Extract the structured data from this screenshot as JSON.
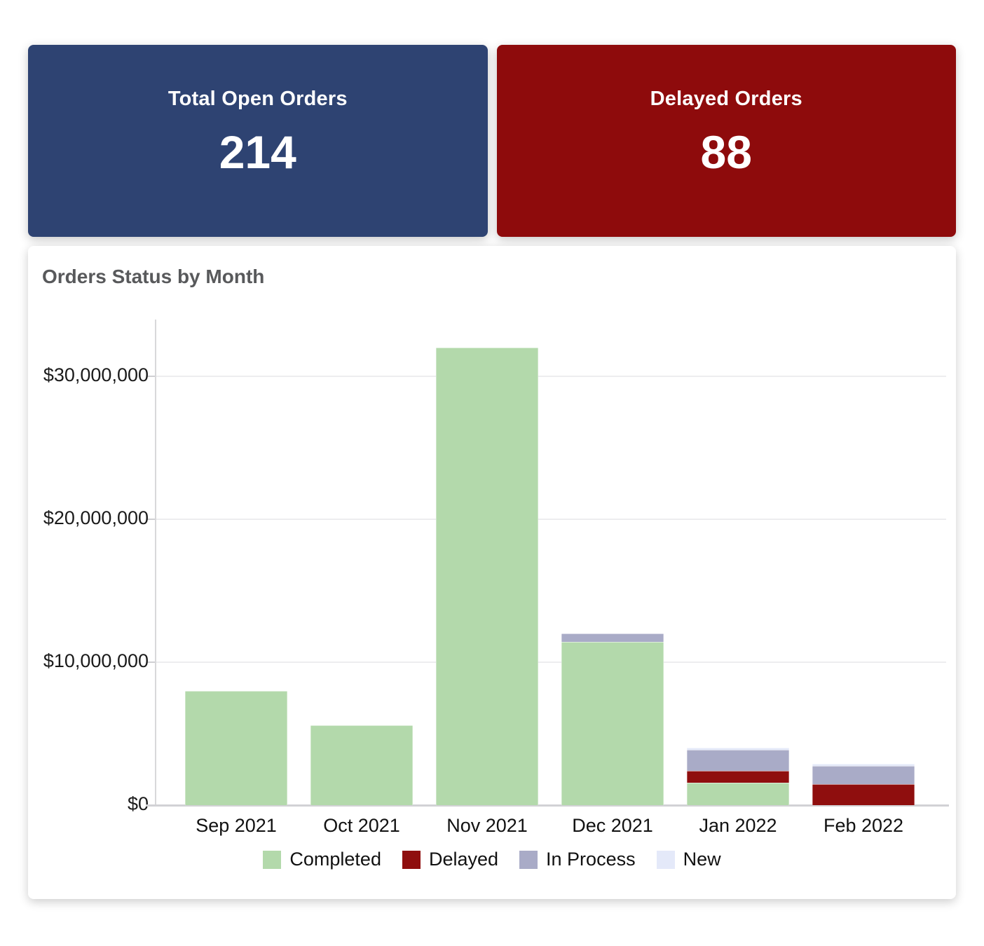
{
  "kpi_cards": [
    {
      "label": "Total Open Orders",
      "value": "214",
      "bg": "#2e4372"
    },
    {
      "label": "Delayed Orders",
      "value": "88",
      "bg": "#8e0b0c"
    }
  ],
  "chart_data": {
    "type": "bar",
    "stacked": true,
    "title": "Orders Status by Month",
    "categories": [
      "Sep 2021",
      "Oct 2021",
      "Nov 2021",
      "Dec 2021",
      "Jan 2022",
      "Feb 2022"
    ],
    "series": [
      {
        "name": "Completed",
        "color": "#b3d9ab",
        "values": [
          8000000,
          5600000,
          32000000,
          11400000,
          1550000,
          0
        ]
      },
      {
        "name": "Delayed",
        "color": "#8f0e0e",
        "values": [
          0,
          0,
          0,
          0,
          850000,
          1450000
        ]
      },
      {
        "name": "In Process",
        "color": "#a9abc7",
        "values": [
          0,
          0,
          0,
          600000,
          1450000,
          1300000
        ]
      },
      {
        "name": "New",
        "color": "#e4e9f9",
        "values": [
          0,
          0,
          0,
          0,
          150000,
          150000
        ]
      }
    ],
    "y_ticks": [
      {
        "value": 0,
        "label": "$0"
      },
      {
        "value": 10000000,
        "label": "$10,000,000"
      },
      {
        "value": 20000000,
        "label": "$20,000,000"
      },
      {
        "value": 30000000,
        "label": "$30,000,000"
      }
    ],
    "ylim": [
      0,
      34000000
    ],
    "grid": true,
    "legend_position": "bottom"
  }
}
